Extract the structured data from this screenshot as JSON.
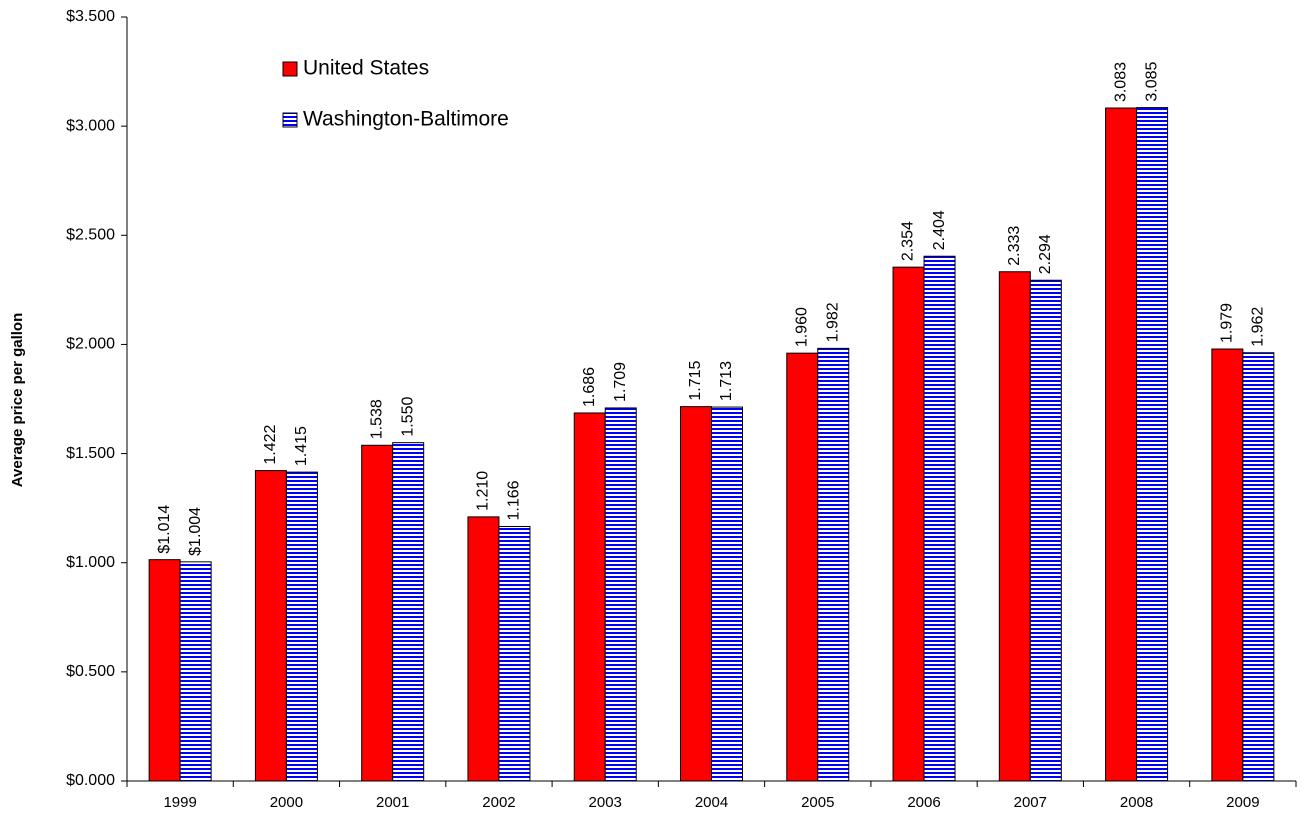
{
  "chart_data": {
    "type": "bar",
    "y_label": "Average price per gallon",
    "categories": [
      "1999",
      "2000",
      "2001",
      "2002",
      "2003",
      "2004",
      "2005",
      "2006",
      "2007",
      "2008",
      "2009"
    ],
    "series": [
      {
        "name": "United States",
        "color": "#ff0000",
        "pattern": "solid",
        "values": [
          1.014,
          1.422,
          1.538,
          1.21,
          1.686,
          1.715,
          1.96,
          2.354,
          2.333,
          3.083,
          1.979
        ],
        "value_labels": [
          "$1.014",
          "1.422",
          "1.538",
          "1.210",
          "1.686",
          "1.715",
          "1.960",
          "2.354",
          "2.333",
          "3.083",
          "1.979"
        ]
      },
      {
        "name": "Washington-Baltimore",
        "color": "#0000ff",
        "pattern": "horizontal-stripes",
        "values": [
          1.004,
          1.415,
          1.55,
          1.166,
          1.709,
          1.713,
          1.982,
          2.404,
          2.294,
          3.085,
          1.962
        ],
        "value_labels": [
          "$1.004",
          "1.415",
          "1.550",
          "1.166",
          "1.709",
          "1.713",
          "1.982",
          "2.404",
          "2.294",
          "3.085",
          "1.962"
        ]
      }
    ],
    "ylim": [
      0,
      3.5
    ],
    "yticks": [
      {
        "value": 0,
        "label": "$0.000"
      },
      {
        "value": 0.5,
        "label": "$0.500"
      },
      {
        "value": 1,
        "label": "$1.000"
      },
      {
        "value": 1.5,
        "label": "$1.500"
      },
      {
        "value": 2,
        "label": "$2.000"
      },
      {
        "value": 2.5,
        "label": "$2.500"
      },
      {
        "value": 3,
        "label": "$3.000"
      },
      {
        "value": 3.5,
        "label": "$3.500"
      }
    ],
    "grid": false,
    "legend": "upper left"
  }
}
